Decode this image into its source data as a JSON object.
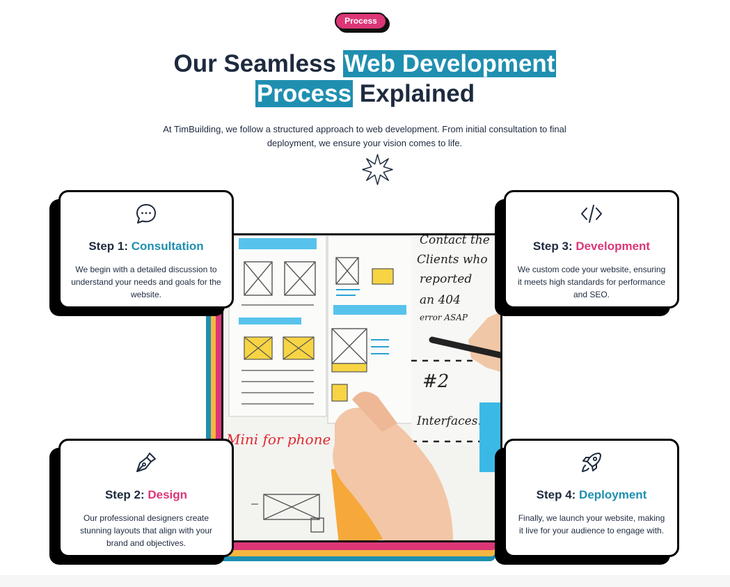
{
  "badge": "Process",
  "headline": {
    "part1": "Our Seamless ",
    "highlight1": "Web Development",
    "highlight2": "Process",
    "part2": " Explained"
  },
  "intro": "At TimBuilding, we follow a structured approach to web development. From initial consultation to final deployment, we ensure your vision comes to life.",
  "colors": {
    "accent_blue": "#1f8fb0",
    "accent_pink": "#dc3677",
    "accent_yellow": "#f6b640",
    "text_dark": "#1e2a3e"
  },
  "steps": [
    {
      "prefix": "Step 1: ",
      "name": "Consultation",
      "icon": "chat-bubble-icon",
      "color": "blue",
      "desc": "We begin with a detailed discussion to understand your needs and goals for the website."
    },
    {
      "prefix": "Step 2: ",
      "name": "Design",
      "icon": "pen-nib-icon",
      "color": "pink",
      "desc": "Our professional designers create stunning layouts that align with your brand and objectives."
    },
    {
      "prefix": "Step 3: ",
      "name": "Development",
      "icon": "code-icon",
      "color": "pink",
      "desc": "We custom code your website, ensuring it meets high standards for performance and SEO."
    },
    {
      "prefix": "Step 4: ",
      "name": "Deployment",
      "icon": "rocket-icon",
      "color": "blue",
      "desc": "Finally, we launch your website, making it live for your audience to engage with."
    }
  ]
}
